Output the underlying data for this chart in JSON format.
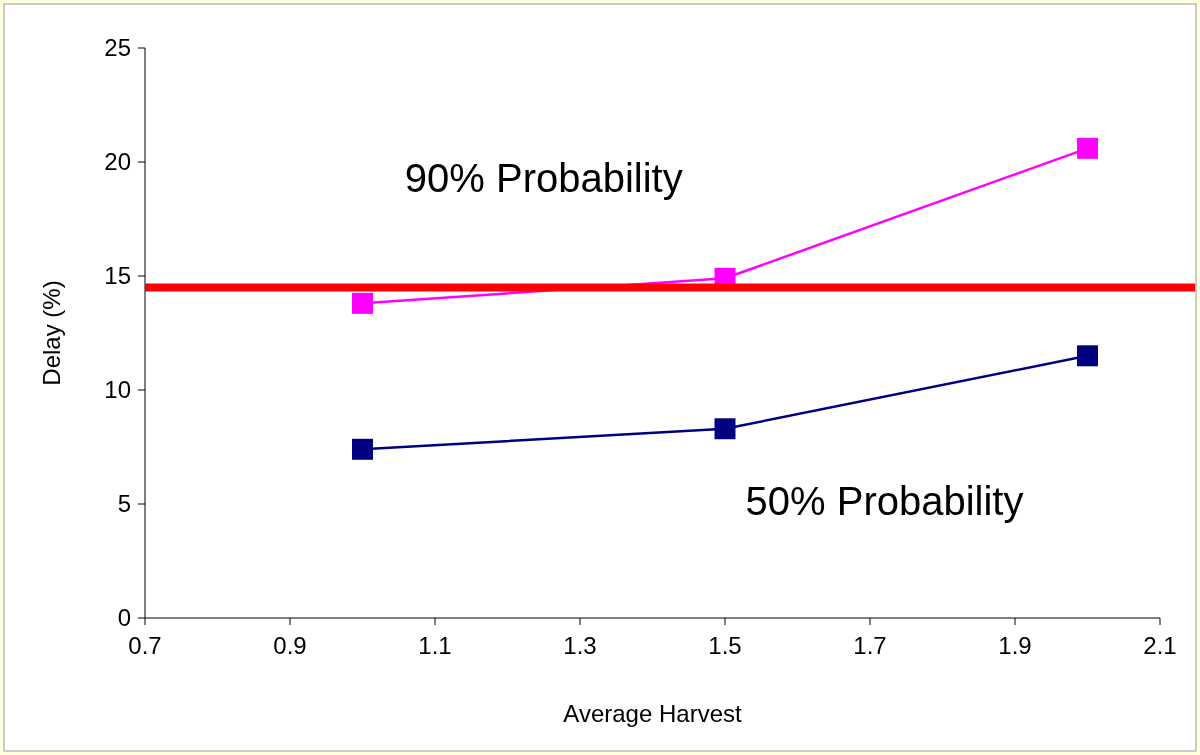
{
  "chart_data": {
    "type": "line",
    "xlabel": "Average Harvest",
    "ylabel": "Delay (%)",
    "x": [
      1.0,
      1.5,
      2.0
    ],
    "series": [
      {
        "name": "90% Probability",
        "color": "#ff00ff",
        "values": [
          13.8,
          14.9,
          20.6
        ]
      },
      {
        "name": "50% Probability",
        "color": "#000080",
        "values": [
          7.4,
          8.3,
          11.5
        ]
      }
    ],
    "xlim": [
      0.7,
      2.1
    ],
    "xticks": [
      0.7,
      0.9,
      1.1,
      1.3,
      1.5,
      1.7,
      1.9,
      2.1
    ],
    "ylim": [
      0,
      25
    ],
    "yticks": [
      0,
      5,
      10,
      15,
      20,
      25
    ],
    "ref_lines": [
      {
        "axis": "y",
        "value": 14.5,
        "color": "#ff0000"
      }
    ],
    "marker": "square",
    "line_style": "solid",
    "grid": false
  }
}
